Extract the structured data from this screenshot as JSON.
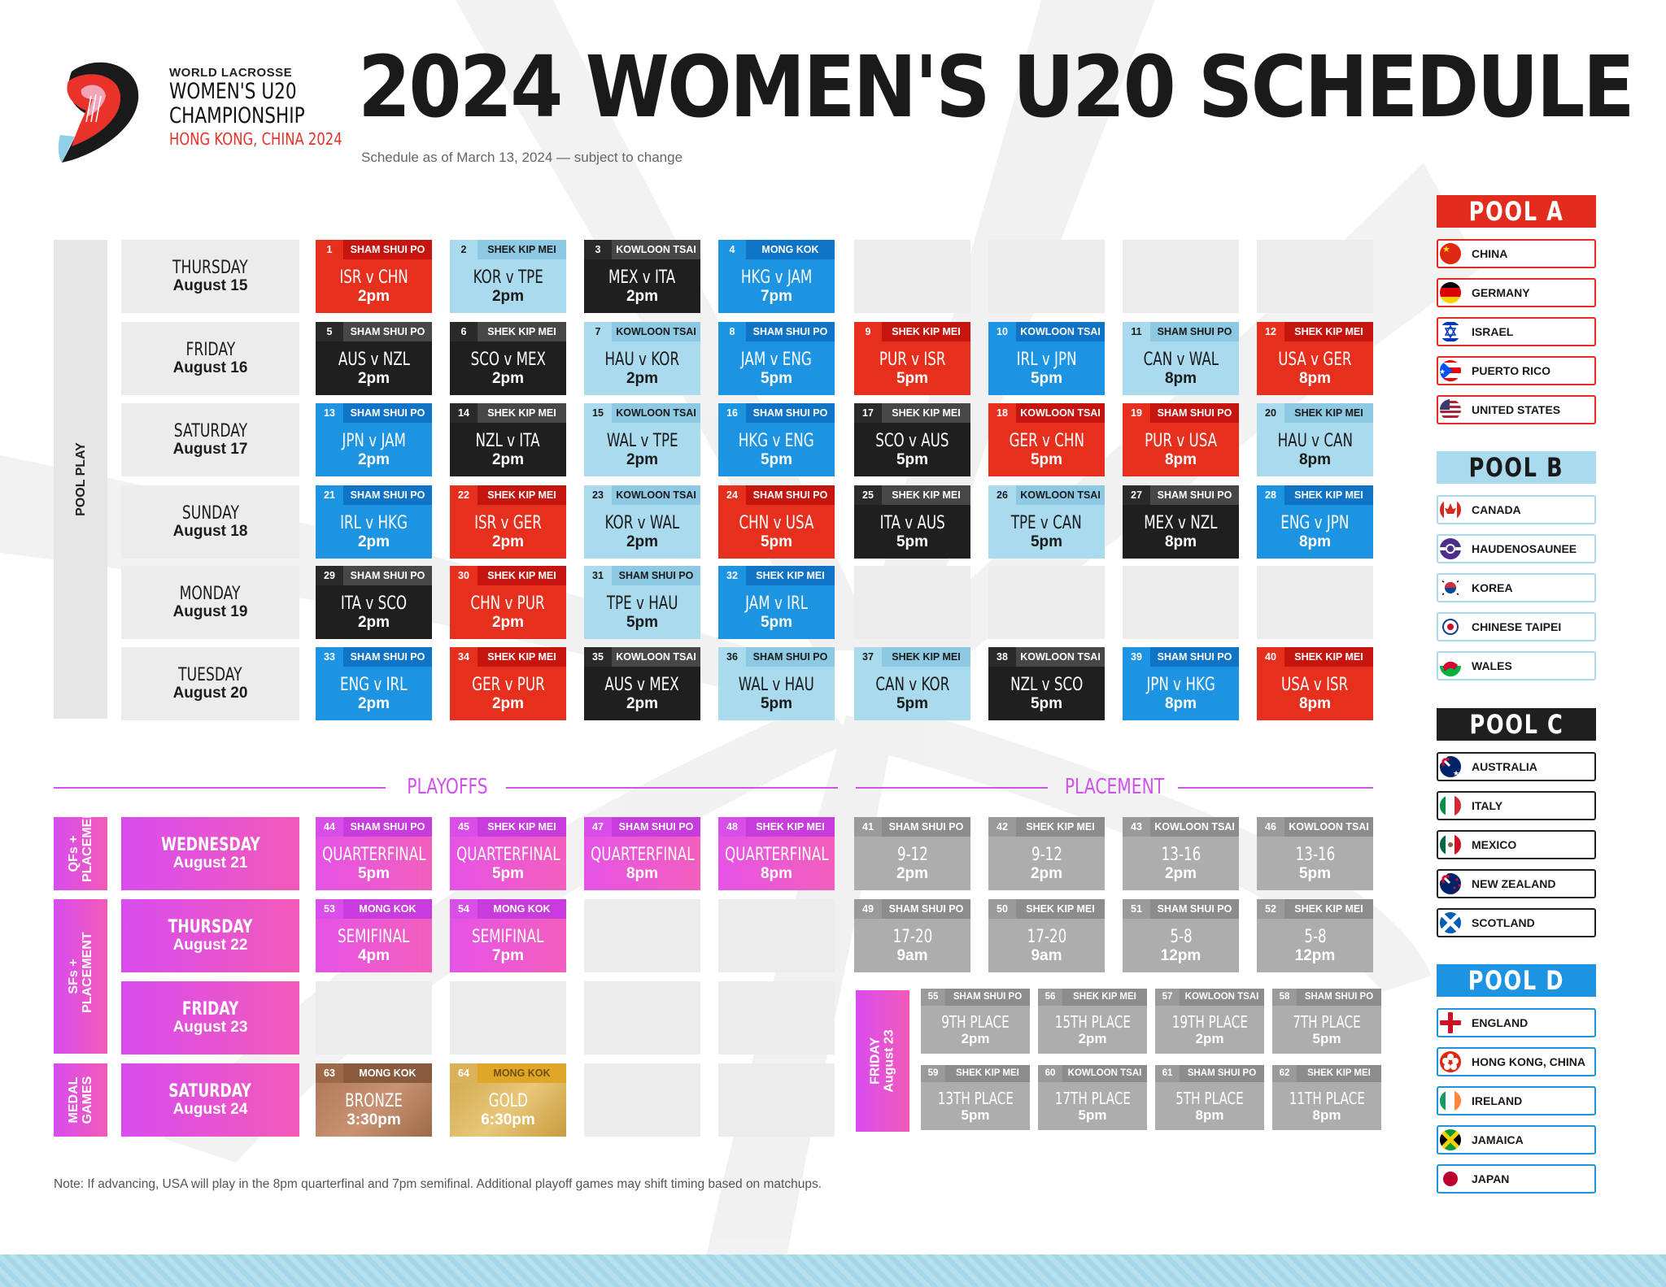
{
  "header": {
    "brand_line1": "WORLD LACROSSE",
    "brand_line2": "WOMEN'S U20",
    "brand_line3": "CHAMPIONSHIP",
    "brand_line4": "HONG KONG, CHINA 2024",
    "title": "2024 WOMEN'S U20 SCHEDULE",
    "subtitle": "Schedule as of March 13, 2024 — subject to change"
  },
  "labels": {
    "pool_play": "POOL PLAY",
    "qf_placement": "QFs + PLACEMENT",
    "sf_placement": "SFs + PLACEMENT",
    "medal_games": "MEDAL GAMES",
    "playoffs": "PLAYOFFS",
    "placement": "PLACEMENT",
    "friday_aug23_day": "FRIDAY",
    "friday_aug23_date": "August 23"
  },
  "days": [
    {
      "day": "THURSDAY",
      "date": "August 15"
    },
    {
      "day": "FRIDAY",
      "date": "August 16"
    },
    {
      "day": "SATURDAY",
      "date": "August 17"
    },
    {
      "day": "SUNDAY",
      "date": "August 18"
    },
    {
      "day": "MONDAY",
      "date": "August 19"
    },
    {
      "day": "TUESDAY",
      "date": "August 20"
    },
    {
      "day": "WEDNESDAY",
      "date": "August 21"
    },
    {
      "day": "THURSDAY",
      "date": "August 22"
    },
    {
      "day": "FRIDAY",
      "date": "August 23"
    },
    {
      "day": "SATURDAY",
      "date": "August 24"
    }
  ],
  "pool_games": [
    [
      {
        "n": "1",
        "venue": "SHAM SHUI PO",
        "match": "ISR v CHN",
        "time": "2pm",
        "color": "red"
      },
      {
        "n": "2",
        "venue": "SHEK KIP MEI",
        "match": "KOR v TPE",
        "time": "2pm",
        "color": "lblue"
      },
      {
        "n": "3",
        "venue": "KOWLOON TSAI",
        "match": "MEX v ITA",
        "time": "2pm",
        "color": "black"
      },
      {
        "n": "4",
        "venue": "MONG KOK",
        "match": "HKG v JAM",
        "time": "7pm",
        "color": "blue"
      }
    ],
    [
      {
        "n": "5",
        "venue": "SHAM SHUI PO",
        "match": "AUS v NZL",
        "time": "2pm",
        "color": "black"
      },
      {
        "n": "6",
        "venue": "SHEK KIP MEI",
        "match": "SCO v MEX",
        "time": "2pm",
        "color": "black"
      },
      {
        "n": "7",
        "venue": "KOWLOON TSAI",
        "match": "HAU v KOR",
        "time": "2pm",
        "color": "lblue"
      },
      {
        "n": "8",
        "venue": "SHAM SHUI PO",
        "match": "JAM v ENG",
        "time": "5pm",
        "color": "blue"
      },
      {
        "n": "9",
        "venue": "SHEK KIP MEI",
        "match": "PUR v ISR",
        "time": "5pm",
        "color": "red"
      },
      {
        "n": "10",
        "venue": "KOWLOON TSAI",
        "match": "IRL v JPN",
        "time": "5pm",
        "color": "blue"
      },
      {
        "n": "11",
        "venue": "SHAM SHUI PO",
        "match": "CAN v WAL",
        "time": "8pm",
        "color": "lblue"
      },
      {
        "n": "12",
        "venue": "SHEK KIP MEI",
        "match": "USA v GER",
        "time": "8pm",
        "color": "red"
      }
    ],
    [
      {
        "n": "13",
        "venue": "SHAM SHUI PO",
        "match": "JPN v JAM",
        "time": "2pm",
        "color": "blue"
      },
      {
        "n": "14",
        "venue": "SHEK KIP MEI",
        "match": "NZL v ITA",
        "time": "2pm",
        "color": "black"
      },
      {
        "n": "15",
        "venue": "KOWLOON TSAI",
        "match": "WAL v TPE",
        "time": "2pm",
        "color": "lblue"
      },
      {
        "n": "16",
        "venue": "SHAM SHUI PO",
        "match": "HKG v ENG",
        "time": "5pm",
        "color": "blue"
      },
      {
        "n": "17",
        "venue": "SHEK KIP MEI",
        "match": "SCO v AUS",
        "time": "5pm",
        "color": "black"
      },
      {
        "n": "18",
        "venue": "KOWLOON TSAI",
        "match": "GER v CHN",
        "time": "5pm",
        "color": "red"
      },
      {
        "n": "19",
        "venue": "SHAM SHUI PO",
        "match": "PUR v USA",
        "time": "8pm",
        "color": "red"
      },
      {
        "n": "20",
        "venue": "SHEK KIP MEI",
        "match": "HAU v CAN",
        "time": "8pm",
        "color": "lblue"
      }
    ],
    [
      {
        "n": "21",
        "venue": "SHAM SHUI PO",
        "match": "IRL v HKG",
        "time": "2pm",
        "color": "blue"
      },
      {
        "n": "22",
        "venue": "SHEK KIP MEI",
        "match": "ISR v GER",
        "time": "2pm",
        "color": "red"
      },
      {
        "n": "23",
        "venue": "KOWLOON TSAI",
        "match": "KOR v WAL",
        "time": "2pm",
        "color": "lblue"
      },
      {
        "n": "24",
        "venue": "SHAM SHUI PO",
        "match": "CHN v USA",
        "time": "5pm",
        "color": "red"
      },
      {
        "n": "25",
        "venue": "SHEK KIP MEI",
        "match": "ITA v AUS",
        "time": "5pm",
        "color": "black"
      },
      {
        "n": "26",
        "venue": "KOWLOON TSAI",
        "match": "TPE v CAN",
        "time": "5pm",
        "color": "lblue"
      },
      {
        "n": "27",
        "venue": "SHAM SHUI PO",
        "match": "MEX v NZL",
        "time": "8pm",
        "color": "black"
      },
      {
        "n": "28",
        "venue": "SHEK KIP MEI",
        "match": "ENG v JPN",
        "time": "8pm",
        "color": "blue"
      }
    ],
    [
      {
        "n": "29",
        "venue": "SHAM SHUI PO",
        "match": "ITA v SCO",
        "time": "2pm",
        "color": "black"
      },
      {
        "n": "30",
        "venue": "SHEK KIP MEI",
        "match": "CHN v PUR",
        "time": "2pm",
        "color": "red"
      },
      {
        "n": "31",
        "venue": "SHAM SHUI PO",
        "match": "TPE v HAU",
        "time": "5pm",
        "color": "lblue"
      },
      {
        "n": "32",
        "venue": "SHEK KIP MEI",
        "match": "JAM v IRL",
        "time": "5pm",
        "color": "blue"
      }
    ],
    [
      {
        "n": "33",
        "venue": "SHAM SHUI PO",
        "match": "ENG v IRL",
        "time": "2pm",
        "color": "blue"
      },
      {
        "n": "34",
        "venue": "SHEK KIP MEI",
        "match": "GER v PUR",
        "time": "2pm",
        "color": "red"
      },
      {
        "n": "35",
        "venue": "KOWLOON TSAI",
        "match": "AUS v MEX",
        "time": "2pm",
        "color": "black"
      },
      {
        "n": "36",
        "venue": "SHAM SHUI PO",
        "match": "WAL v HAU",
        "time": "5pm",
        "color": "lblue"
      },
      {
        "n": "37",
        "venue": "SHEK KIP MEI",
        "match": "CAN v KOR",
        "time": "5pm",
        "color": "lblue"
      },
      {
        "n": "38",
        "venue": "KOWLOON TSAI",
        "match": "NZL v SCO",
        "time": "5pm",
        "color": "black"
      },
      {
        "n": "39",
        "venue": "SHAM SHUI PO",
        "match": "JPN v HKG",
        "time": "8pm",
        "color": "blue"
      },
      {
        "n": "40",
        "venue": "SHEK KIP MEI",
        "match": "USA v ISR",
        "time": "8pm",
        "color": "red"
      }
    ]
  ],
  "playoff_games": [
    [
      {
        "n": "44",
        "venue": "SHAM SHUI PO",
        "match": "QUARTERFINAL",
        "time": "5pm",
        "color": "pink"
      },
      {
        "n": "45",
        "venue": "SHEK KIP MEI",
        "match": "QUARTERFINAL",
        "time": "5pm",
        "color": "pink"
      },
      {
        "n": "47",
        "venue": "SHAM SHUI PO",
        "match": "QUARTERFINAL",
        "time": "8pm",
        "color": "pink"
      },
      {
        "n": "48",
        "venue": "SHEK KIP MEI",
        "match": "QUARTERFINAL",
        "time": "8pm",
        "color": "pink"
      }
    ],
    [
      {
        "n": "53",
        "venue": "MONG KOK",
        "match": "SEMIFINAL",
        "time": "4pm",
        "color": "pink"
      },
      {
        "n": "54",
        "venue": "MONG KOK",
        "match": "SEMIFINAL",
        "time": "7pm",
        "color": "pink"
      }
    ],
    [],
    [
      {
        "n": "63",
        "venue": "MONG KOK",
        "match": "BRONZE",
        "time": "3:30pm",
        "color": "bronze"
      },
      {
        "n": "64",
        "venue": "MONG KOK",
        "match": "GOLD",
        "time": "6:30pm",
        "color": "gold"
      }
    ]
  ],
  "placement_games": [
    [
      {
        "n": "41",
        "venue": "SHAM SHUI PO",
        "match": "9-12",
        "time": "2pm",
        "color": "grey"
      },
      {
        "n": "42",
        "venue": "SHEK KIP MEI",
        "match": "9-12",
        "time": "2pm",
        "color": "grey"
      },
      {
        "n": "43",
        "venue": "KOWLOON TSAI",
        "match": "13-16",
        "time": "2pm",
        "color": "grey"
      },
      {
        "n": "46",
        "venue": "KOWLOON TSAI",
        "match": "13-16",
        "time": "5pm",
        "color": "grey"
      }
    ],
    [
      {
        "n": "49",
        "venue": "SHAM SHUI PO",
        "match": "17-20",
        "time": "9am",
        "color": "grey"
      },
      {
        "n": "50",
        "venue": "SHEK KIP MEI",
        "match": "17-20",
        "time": "9am",
        "color": "grey"
      },
      {
        "n": "51",
        "venue": "SHAM SHUI PO",
        "match": "5-8",
        "time": "12pm",
        "color": "grey"
      },
      {
        "n": "52",
        "venue": "SHEK KIP MEI",
        "match": "5-8",
        "time": "12pm",
        "color": "grey"
      }
    ]
  ],
  "friday_placement": [
    [
      {
        "n": "55",
        "venue": "SHAM SHUI PO",
        "match": "9TH PLACE",
        "time": "2pm",
        "color": "grey"
      },
      {
        "n": "56",
        "venue": "SHEK KIP MEI",
        "match": "15TH PLACE",
        "time": "2pm",
        "color": "grey"
      },
      {
        "n": "57",
        "venue": "KOWLOON TSAI",
        "match": "19TH PLACE",
        "time": "2pm",
        "color": "grey"
      },
      {
        "n": "58",
        "venue": "SHAM SHUI PO",
        "match": "7TH PLACE",
        "time": "5pm",
        "color": "grey"
      }
    ],
    [
      {
        "n": "59",
        "venue": "SHEK KIP MEI",
        "match": "13TH PLACE",
        "time": "5pm",
        "color": "grey"
      },
      {
        "n": "60",
        "venue": "KOWLOON TSAI",
        "match": "17TH PLACE",
        "time": "5pm",
        "color": "grey"
      },
      {
        "n": "61",
        "venue": "SHAM SHUI PO",
        "match": "5TH PLACE",
        "time": "8pm",
        "color": "grey"
      },
      {
        "n": "62",
        "venue": "SHEK KIP MEI",
        "match": "11TH PLACE",
        "time": "8pm",
        "color": "grey"
      }
    ]
  ],
  "pools": [
    {
      "name": "POOL A",
      "key": "A",
      "teams": [
        {
          "name": "CHINA",
          "flag": "china"
        },
        {
          "name": "GERMANY",
          "flag": "germany"
        },
        {
          "name": "ISRAEL",
          "flag": "israel"
        },
        {
          "name": "PUERTO RICO",
          "flag": "puerto-rico"
        },
        {
          "name": "UNITED STATES",
          "flag": "usa"
        }
      ]
    },
    {
      "name": "POOL B",
      "key": "B",
      "teams": [
        {
          "name": "CANADA",
          "flag": "canada"
        },
        {
          "name": "HAUDENOSAUNEE",
          "flag": "haudenosaunee"
        },
        {
          "name": "KOREA",
          "flag": "korea"
        },
        {
          "name": "CHINESE TAIPEI",
          "flag": "chinese-taipei"
        },
        {
          "name": "WALES",
          "flag": "wales"
        }
      ]
    },
    {
      "name": "POOL C",
      "key": "C",
      "teams": [
        {
          "name": "AUSTRALIA",
          "flag": "australia"
        },
        {
          "name": "ITALY",
          "flag": "italy"
        },
        {
          "name": "MEXICO",
          "flag": "mexico"
        },
        {
          "name": "NEW ZEALAND",
          "flag": "new-zealand"
        },
        {
          "name": "SCOTLAND",
          "flag": "scotland"
        }
      ]
    },
    {
      "name": "POOL D",
      "key": "D",
      "teams": [
        {
          "name": "ENGLAND",
          "flag": "england"
        },
        {
          "name": "HONG KONG, CHINA",
          "flag": "hong-kong"
        },
        {
          "name": "IRELAND",
          "flag": "ireland"
        },
        {
          "name": "JAMAICA",
          "flag": "jamaica"
        },
        {
          "name": "JAPAN",
          "flag": "japan"
        }
      ]
    }
  ],
  "note": "Note: If advancing, USA will play in the 8pm quarterfinal and 7pm semifinal. Additional playoff games may shift timing based on matchups."
}
